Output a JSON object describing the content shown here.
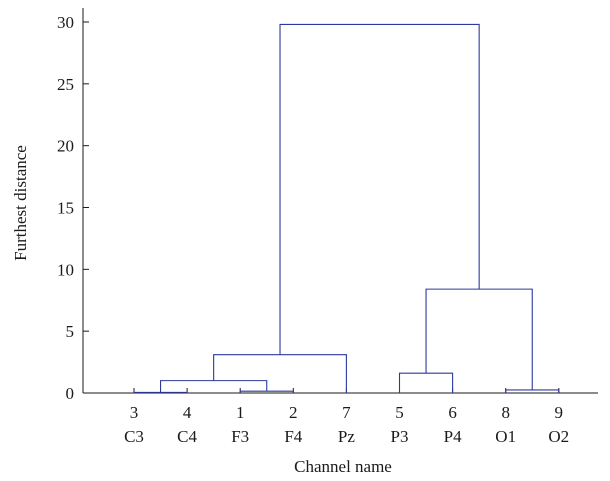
{
  "chart_data": {
    "type": "dendrogram",
    "xlabel": "Channel name",
    "ylabel": "Furthest distance",
    "ylim": [
      0,
      31
    ],
    "yticks": [
      0,
      5,
      10,
      15,
      20,
      25,
      30
    ],
    "grid": false,
    "leaves": [
      {
        "id": "3",
        "name": "C3"
      },
      {
        "id": "4",
        "name": "C4"
      },
      {
        "id": "1",
        "name": "F3"
      },
      {
        "id": "2",
        "name": "F4"
      },
      {
        "id": "7",
        "name": "Pz"
      },
      {
        "id": "5",
        "name": "P3"
      },
      {
        "id": "6",
        "name": "P4"
      },
      {
        "id": "8",
        "name": "O1"
      },
      {
        "id": "9",
        "name": "O2"
      }
    ],
    "merges": [
      {
        "left": "L0",
        "right": "L1",
        "height": 0.05
      },
      {
        "left": "L2",
        "right": "L3",
        "height": 0.15
      },
      {
        "left": "L7",
        "right": "L8",
        "height": 0.25
      },
      {
        "left": "M0",
        "right": "M1",
        "height": 1.0
      },
      {
        "left": "L5",
        "right": "L6",
        "height": 1.6
      },
      {
        "left": "M3",
        "right": "L4",
        "height": 3.1
      },
      {
        "left": "M4",
        "right": "M2",
        "height": 8.4
      },
      {
        "left": "M5",
        "right": "M6",
        "height": 29.8
      }
    ],
    "line_color": "#2c3a9c"
  }
}
